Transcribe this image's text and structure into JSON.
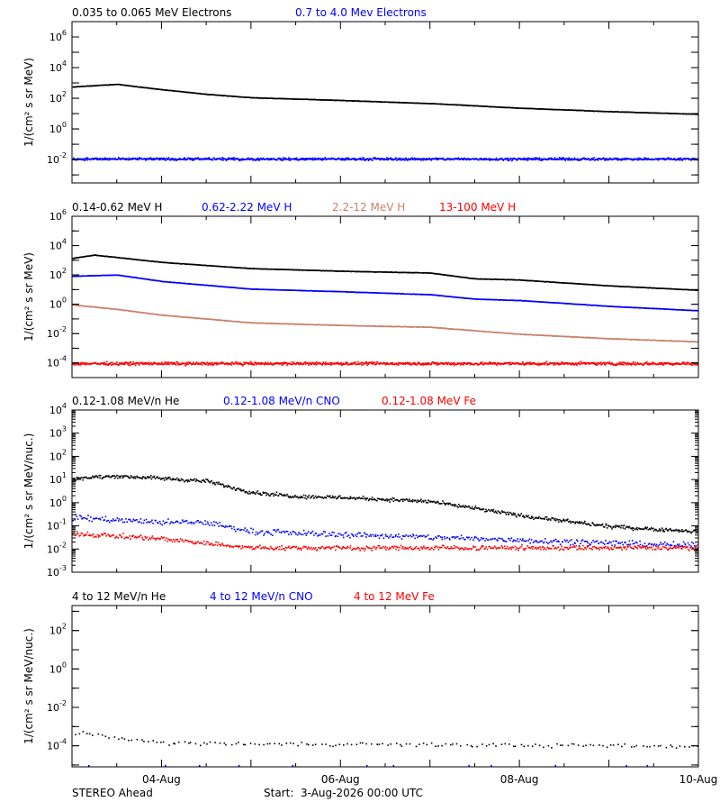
{
  "footer": {
    "mission": "STEREO Ahead",
    "start": "Start:  3-Aug-2026 00:00 UTC"
  },
  "x_axis": {
    "range": [
      "2026-08-03 00:00",
      "2026-08-10 00:00"
    ],
    "tick_labels": [
      {
        "date": "2026-08-04",
        "label": "04-Aug"
      },
      {
        "date": "2026-08-06",
        "label": "06-Aug"
      },
      {
        "date": "2026-08-08",
        "label": "08-Aug"
      },
      {
        "date": "2026-08-10",
        "label": "10-Aug"
      }
    ]
  },
  "chart_data": [
    {
      "type": "scatter",
      "ylabel": "1/(cm² s sr MeV)",
      "yscale": "log",
      "ylim": [
        0.0003,
        10000000
      ],
      "tick_exponents": [
        -2,
        0,
        2,
        4,
        6
      ],
      "series": [
        {
          "name": "0.035 to 0.065 MeV Electrons",
          "color": "#000000",
          "x": [
            "2026-08-03 00:00",
            "2026-08-03 12:00",
            "2026-08-04 00:00",
            "2026-08-04 12:00",
            "2026-08-05 00:00",
            "2026-08-06 00:00",
            "2026-08-07 00:00",
            "2026-08-08 00:00",
            "2026-08-09 00:00",
            "2026-08-10 00:00"
          ],
          "values": [
            600,
            900,
            400,
            200,
            120,
            80,
            50,
            25,
            15,
            10
          ]
        },
        {
          "name": "0.7 to 4.0 Mev Electrons",
          "color": "#0000ff",
          "x": [
            "2026-08-03 00:00",
            "2026-08-10 00:00"
          ],
          "values": [
            0.012,
            0.012
          ]
        }
      ]
    },
    {
      "type": "scatter",
      "ylabel": "1/(cm² s sr MeV)",
      "yscale": "log",
      "ylim": [
        1e-05,
        1000000
      ],
      "tick_exponents": [
        -4,
        -2,
        0,
        2,
        4,
        6
      ],
      "series": [
        {
          "name": "0.14-0.62 MeV H",
          "color": "#000000",
          "x": [
            "2026-08-03 00:00",
            "2026-08-03 06:00",
            "2026-08-04 00:00",
            "2026-08-05 00:00",
            "2026-08-06 00:00",
            "2026-08-07 00:00",
            "2026-08-07 12:00",
            "2026-08-08 00:00",
            "2026-08-09 00:00",
            "2026-08-10 00:00"
          ],
          "values": [
            1500,
            2500,
            800,
            300,
            200,
            150,
            60,
            50,
            20,
            10
          ]
        },
        {
          "name": "0.62-2.22 MeV H",
          "color": "#0000ff",
          "x": [
            "2026-08-03 00:00",
            "2026-08-03 12:00",
            "2026-08-04 00:00",
            "2026-08-05 00:00",
            "2026-08-06 00:00",
            "2026-08-07 00:00",
            "2026-08-07 12:00",
            "2026-08-08 00:00",
            "2026-08-09 00:00",
            "2026-08-10 00:00"
          ],
          "values": [
            90,
            110,
            40,
            12,
            8,
            5,
            2.5,
            2,
            0.8,
            0.4
          ]
        },
        {
          "name": "2.2-12 MeV H",
          "color": "#c8826a",
          "x": [
            "2026-08-03 00:00",
            "2026-08-03 12:00",
            "2026-08-04 00:00",
            "2026-08-05 00:00",
            "2026-08-06 00:00",
            "2026-08-07 00:00",
            "2026-08-08 00:00",
            "2026-08-09 00:00",
            "2026-08-10 00:00"
          ],
          "values": [
            1,
            0.5,
            0.2,
            0.06,
            0.04,
            0.03,
            0.01,
            0.005,
            0.003
          ]
        },
        {
          "name": "13-100 MeV H",
          "color": "#ff0000",
          "x": [
            "2026-08-03 00:00",
            "2026-08-10 00:00"
          ],
          "values": [
            0.0001,
            0.0001
          ]
        }
      ]
    },
    {
      "type": "scatter",
      "ylabel": "1/(cm² s sr MeV/nuc.)",
      "yscale": "log",
      "ylim": [
        0.001,
        10000
      ],
      "tick_exponents": [
        -3,
        -2,
        -1,
        0,
        1,
        2,
        3,
        4
      ],
      "series": [
        {
          "name": "0.12-1.08 MeV/n He",
          "color": "#000000",
          "x": [
            "2026-08-03 00:00",
            "2026-08-03 12:00",
            "2026-08-04 00:00",
            "2026-08-04 12:00",
            "2026-08-05 00:00",
            "2026-08-05 12:00",
            "2026-08-06 00:00",
            "2026-08-07 00:00",
            "2026-08-08 00:00",
            "2026-08-09 00:00",
            "2026-08-10 00:00"
          ],
          "values": [
            12,
            15,
            12,
            9,
            3,
            2,
            1.8,
            1.2,
            0.3,
            0.1,
            0.06
          ]
        },
        {
          "name": "0.12-1.08 MeV/n CNO",
          "color": "#0000ff",
          "x": [
            "2026-08-03 00:00",
            "2026-08-04 00:00",
            "2026-08-04 12:00",
            "2026-08-05 00:00",
            "2026-08-10 00:00"
          ],
          "values": [
            0.25,
            0.15,
            0.15,
            0.06,
            0.015
          ]
        },
        {
          "name": "0.12-1.08 MeV Fe",
          "color": "#ff0000",
          "x": [
            "2026-08-03 00:00",
            "2026-08-04 00:00",
            "2026-08-05 00:00",
            "2026-08-10 00:00"
          ],
          "values": [
            0.05,
            0.03,
            0.012,
            0.012
          ]
        }
      ]
    },
    {
      "type": "scatter",
      "ylabel": "1/(cm² s sr MeV/nuc.)",
      "yscale": "log",
      "ylim": [
        8e-06,
        2000
      ],
      "tick_exponents": [
        -4,
        -2,
        0,
        2
      ],
      "series": [
        {
          "name": "4 to 12 MeV/n He",
          "color": "#000000",
          "x": [
            "2026-08-03 00:00",
            "2026-08-03 12:00",
            "2026-08-04 00:00",
            "2026-08-10 00:00"
          ],
          "values": [
            0.0005,
            0.0003,
            0.00015,
            0.0001
          ]
        },
        {
          "name": "4 to 12 MeV/n CNO",
          "color": "#0000ff",
          "x": [
            "2026-08-03 00:00",
            "2026-08-10 00:00"
          ],
          "values": [
            1e-05,
            1e-05
          ]
        },
        {
          "name": "4 to 12 MeV Fe",
          "color": "#ff0000",
          "x": [],
          "values": []
        }
      ]
    }
  ]
}
